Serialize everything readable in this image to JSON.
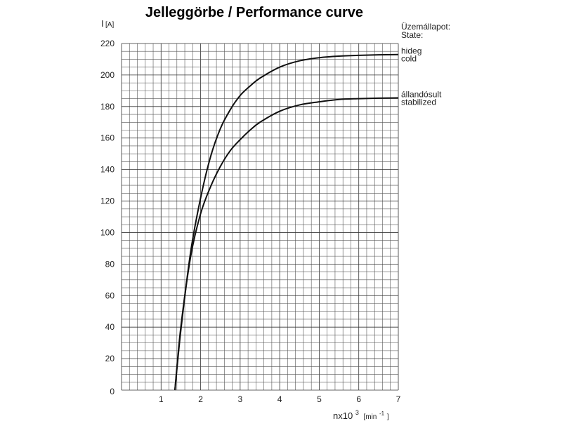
{
  "chart_data": {
    "type": "line",
    "title": "Jelleggörbe / Performance curve",
    "ylabel": "I",
    "ylabel_unit": "[A]",
    "xlabel": "nx10",
    "xlabel_exp": "3",
    "xlabel_unit": "[min",
    "xlabel_unit_exp": "-1",
    "xlabel_unit_close": "]",
    "xlim": [
      0,
      7
    ],
    "ylim": [
      0,
      220
    ],
    "x_ticks": [
      "1",
      "2",
      "3",
      "4",
      "5",
      "6",
      "7"
    ],
    "y_ticks": [
      "0",
      "20",
      "40",
      "60",
      "80",
      "100",
      "120",
      "140",
      "160",
      "180",
      "200",
      "220"
    ],
    "grid": true,
    "state_label": [
      "Üzemállapot:",
      "State:"
    ],
    "series": [
      {
        "name": "hideg",
        "name_en": "cold",
        "x": [
          1.35,
          1.5,
          1.75,
          2.0,
          2.25,
          2.5,
          2.75,
          3.0,
          3.25,
          3.5,
          4.0,
          4.5,
          5.0,
          5.5,
          6.0,
          6.5,
          7.0
        ],
        "y": [
          0,
          38,
          88,
          122,
          148,
          166,
          178,
          187,
          193,
          198,
          205,
          209,
          211,
          212,
          212.5,
          212.8,
          213
        ]
      },
      {
        "name": "állandósult",
        "name_en": "stabilized",
        "x": [
          1.35,
          1.5,
          1.75,
          2.0,
          2.25,
          2.5,
          2.75,
          3.0,
          3.25,
          3.5,
          4.0,
          4.5,
          5.0,
          5.5,
          6.0,
          6.5,
          7.0
        ],
        "y": [
          0,
          40,
          85,
          112,
          129,
          142,
          152,
          159,
          165,
          170,
          177,
          181,
          183,
          184.5,
          185,
          185.3,
          185.5
        ]
      }
    ]
  }
}
